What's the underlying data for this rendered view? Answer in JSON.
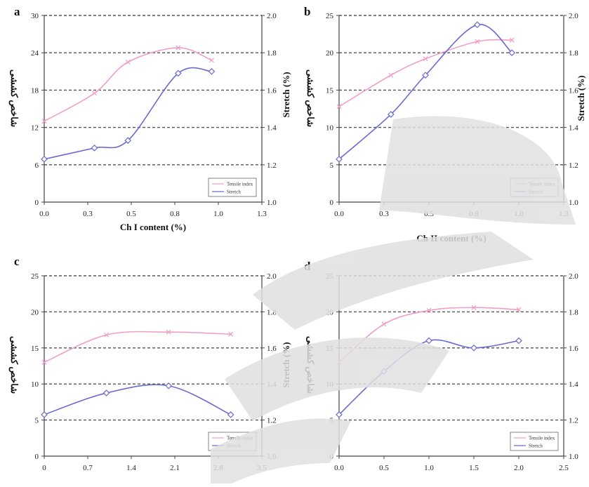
{
  "watermark_color": "#e0e0e0",
  "colors": {
    "tensile": "#f0a0c8",
    "stretch": "#6a6ad0",
    "grid": "#555555",
    "axis": "#444444"
  },
  "chart_data": [
    {
      "type": "line",
      "panel": "a",
      "xlabel": "Ch I content (%)",
      "ylabel_left": "شاخص کششی",
      "ylabel_right": "Stretch (%)",
      "x_ticks": [
        "0.0",
        "0.3",
        "0.5",
        "0.8",
        "1.0",
        "1.3"
      ],
      "y_left_ticks": [
        "0",
        "6",
        "12",
        "18",
        "24",
        "30"
      ],
      "y_right_ticks": [
        "1.0",
        "1.2",
        "1.4",
        "1.6",
        "1.8",
        "2.0"
      ],
      "xlim": [
        0,
        1.3
      ],
      "ylim_left": [
        0,
        30
      ],
      "ylim_right": [
        1.0,
        2.0
      ],
      "grid": "horizontal-dashed",
      "legend_position": "bottom-right",
      "series": [
        {
          "name": "Tensile index",
          "axis": "left",
          "marker": "x",
          "x": [
            0.0,
            0.3,
            0.5,
            0.8,
            1.0
          ],
          "y": [
            13,
            17.5,
            22.5,
            24.8,
            22.8
          ]
        },
        {
          "name": "Stretch",
          "axis": "right",
          "marker": "diamond",
          "x": [
            0.0,
            0.3,
            0.5,
            0.8,
            1.0
          ],
          "y": [
            1.23,
            1.29,
            1.33,
            1.69,
            1.7
          ]
        }
      ]
    },
    {
      "type": "line",
      "panel": "b",
      "xlabel": "Ch II content (%)",
      "ylabel_left": "شاخص کششی",
      "ylabel_right": "Stretch (%)",
      "x_ticks": [
        "0.0",
        "0.3",
        "0.5",
        "0.8",
        "1.0",
        "1.3"
      ],
      "y_left_ticks": [
        "0",
        "5",
        "10",
        "15",
        "20",
        "25"
      ],
      "y_right_ticks": [
        "1.0",
        "1.2",
        "1.4",
        "1.6",
        "1.8",
        "2.0"
      ],
      "xlim": [
        0,
        1.3
      ],
      "ylim_left": [
        0,
        25
      ],
      "ylim_right": [
        1.0,
        2.0
      ],
      "grid": "horizontal-dashed",
      "legend_position": "bottom-right",
      "series": [
        {
          "name": "Tensile index",
          "axis": "left",
          "marker": "x",
          "x": [
            0.0,
            0.3,
            0.5,
            0.8,
            1.0
          ],
          "y": [
            12.8,
            17,
            19.2,
            21.5,
            21.7
          ]
        },
        {
          "name": "Stretch",
          "axis": "right",
          "marker": "diamond",
          "x": [
            0.0,
            0.3,
            0.5,
            0.8,
            1.0
          ],
          "y": [
            1.23,
            1.47,
            1.68,
            1.95,
            1.8
          ]
        }
      ]
    },
    {
      "type": "line",
      "panel": "c",
      "xlabel": "",
      "ylabel_left": "شاخص کششی",
      "ylabel_right": "Stretch (%)",
      "x_ticks": [
        "0",
        "0.7",
        "1.4",
        "2.1",
        "2.8",
        "3.5"
      ],
      "y_left_ticks": [
        "0",
        "5",
        "10",
        "15",
        "20",
        "25"
      ],
      "y_right_ticks": [
        "1.0",
        "1.2",
        "1.4",
        "1.6",
        "1.8",
        "2.0"
      ],
      "xlim": [
        0,
        3.5
      ],
      "ylim_left": [
        0,
        25
      ],
      "ylim_right": [
        1.0,
        2.0
      ],
      "grid": "horizontal-dashed",
      "legend_position": "bottom-right",
      "series": [
        {
          "name": "Tensile index",
          "axis": "left",
          "marker": "x",
          "x": [
            0,
            1.0,
            2.0,
            3.0
          ],
          "y": [
            13,
            16.8,
            17.2,
            16.9
          ]
        },
        {
          "name": "Stretch",
          "axis": "right",
          "marker": "diamond",
          "x": [
            0,
            1.0,
            2.0,
            3.0
          ],
          "y": [
            1.23,
            1.35,
            1.39,
            1.23
          ]
        }
      ]
    },
    {
      "type": "line",
      "panel": "d",
      "xlabel": "",
      "ylabel_left": "شاخص کششی",
      "ylabel_right": "",
      "x_ticks": [
        "0.0",
        "0.5",
        "1.0",
        "1.5",
        "2.0",
        "2.5"
      ],
      "y_left_ticks": [
        "0",
        "5",
        "10",
        "15",
        "20",
        "25"
      ],
      "y_right_ticks": [
        "1.0",
        "1.2",
        "1.4",
        "1.6",
        "1.8",
        "2.0"
      ],
      "xlim": [
        0,
        2.5
      ],
      "ylim_left": [
        0,
        25
      ],
      "ylim_right": [
        1.0,
        2.0
      ],
      "grid": "horizontal-dashed",
      "legend_position": "bottom-right",
      "series": [
        {
          "name": "Tensile index",
          "axis": "left",
          "marker": "x",
          "x": [
            0.0,
            0.5,
            1.0,
            1.5,
            2.0
          ],
          "y": [
            13,
            18.3,
            20.2,
            20.6,
            20.3
          ]
        },
        {
          "name": "Stretch",
          "axis": "right",
          "marker": "diamond",
          "x": [
            0.0,
            0.5,
            1.0,
            1.5,
            2.0
          ],
          "y": [
            1.23,
            1.47,
            1.64,
            1.6,
            1.64
          ]
        }
      ]
    }
  ]
}
